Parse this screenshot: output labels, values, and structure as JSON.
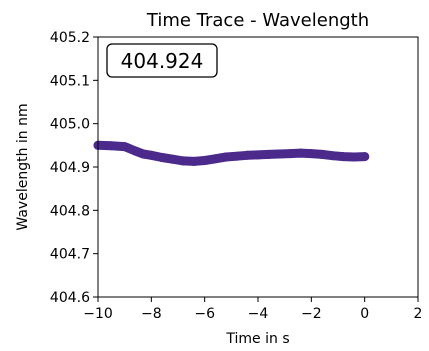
{
  "chart_data": {
    "type": "line",
    "title": "Time Trace - Wavelength",
    "xlabel": "Time in s",
    "ylabel": "Wavelength in nm",
    "xlim": [
      -10,
      2
    ],
    "ylim": [
      404.6,
      405.2
    ],
    "xticks": [
      -10,
      -8,
      -6,
      -4,
      -2,
      0,
      2
    ],
    "xtick_labels": [
      "−10",
      "−8",
      "−6",
      "−4",
      "−2",
      "0",
      "2"
    ],
    "yticks": [
      404.6,
      404.7,
      404.8,
      404.9,
      405.0,
      405.1,
      405.2
    ],
    "ytick_labels": [
      "404.6",
      "404.7",
      "404.8",
      "404.9",
      "405.0",
      "405.1",
      "405.2"
    ],
    "grid": false,
    "current_value_label": "404.924",
    "series": [
      {
        "color": "#4b2a8c",
        "x": [
          -10,
          -9.5,
          -9.0,
          -8.6,
          -8.3,
          -8.0,
          -7.6,
          -7.2,
          -6.8,
          -6.4,
          -6.0,
          -5.6,
          -5.2,
          -4.8,
          -4.4,
          -4.0,
          -3.6,
          -3.2,
          -2.8,
          -2.4,
          -2.0,
          -1.6,
          -1.2,
          -0.8,
          -0.4,
          0
        ],
        "y": [
          404.95,
          404.949,
          404.947,
          404.937,
          404.93,
          404.927,
          404.922,
          404.918,
          404.914,
          404.913,
          404.915,
          404.919,
          404.923,
          404.925,
          404.927,
          404.928,
          404.929,
          404.93,
          404.931,
          404.932,
          404.931,
          404.929,
          404.926,
          404.924,
          404.923,
          404.924
        ]
      }
    ]
  }
}
